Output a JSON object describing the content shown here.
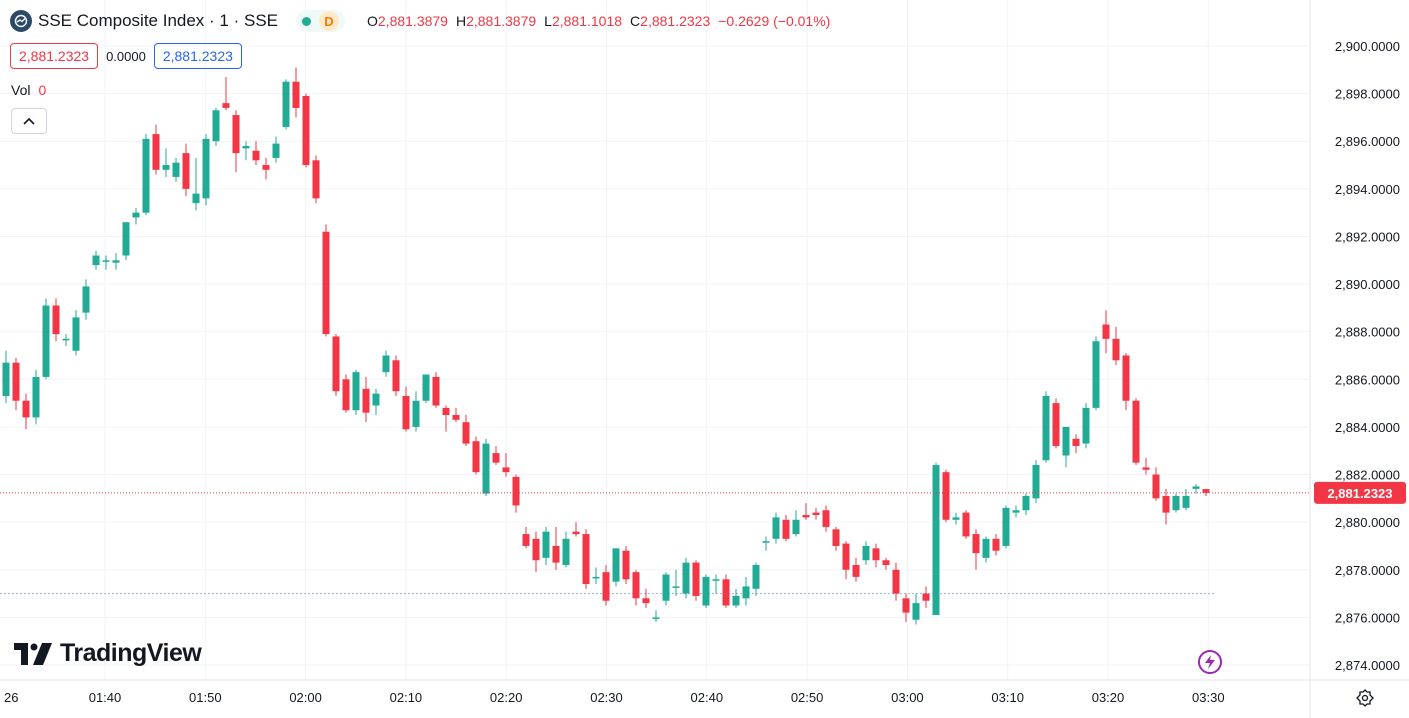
{
  "header": {
    "symbol_title": "SSE Composite Index · 1 · SSE",
    "interval_badge": "D",
    "ohlc": [
      {
        "label": "O",
        "value": "2,881.3879"
      },
      {
        "label": "H",
        "value": "2,881.3879"
      },
      {
        "label": "L",
        "value": "2,881.1018"
      },
      {
        "label": "C",
        "value": "2,881.2323"
      }
    ],
    "change": "−0.2629 (−0.01%)"
  },
  "price_boxes": {
    "sell": "2,881.2323",
    "spread": "0.0000",
    "buy": "2,881.2323"
  },
  "volume": {
    "label": "Vol",
    "value": "0"
  },
  "branding": {
    "name": "TradingView"
  },
  "colors": {
    "up": "#22ab94",
    "down": "#f23645",
    "grid": "#f0f3fa",
    "axis_text": "#131722",
    "last_price_line": "#f23645",
    "bolt": "#9c27b0"
  },
  "icons": [
    "symbol-logo-icon",
    "chevron-up-icon",
    "tradingview-logo-icon",
    "lightning-icon",
    "settings-icon"
  ],
  "chart_data": {
    "type": "candlestick",
    "ylim": [
      2873.0,
      2901.0
    ],
    "y_ticks": [
      "2,900.0000",
      "2,898.0000",
      "2,896.0000",
      "2,894.0000",
      "2,892.0000",
      "2,890.0000",
      "2,888.0000",
      "2,886.0000",
      "2,884.0000",
      "2,882.0000",
      "2,880.0000",
      "2,878.0000",
      "2,876.0000",
      "2,874.0000"
    ],
    "x_ticks": [
      "26",
      "01:40",
      "01:50",
      "02:00",
      "02:10",
      "02:20",
      "02:30",
      "02:40",
      "02:50",
      "03:00",
      "03:10",
      "03:20",
      "03:30"
    ],
    "last_price_label": "2,881.2323",
    "last_price": 2881.2323,
    "reference_line": 2877.0,
    "candles": [
      {
        "o": 2885.3,
        "h": 2887.2,
        "l": 2885.0,
        "c": 2886.7
      },
      {
        "o": 2886.7,
        "h": 2886.9,
        "l": 2884.7,
        "c": 2885.1
      },
      {
        "o": 2885.1,
        "h": 2885.4,
        "l": 2883.9,
        "c": 2884.4
      },
      {
        "o": 2884.4,
        "h": 2886.4,
        "l": 2884.1,
        "c": 2886.1
      },
      {
        "o": 2886.1,
        "h": 2889.4,
        "l": 2886.0,
        "c": 2889.1
      },
      {
        "o": 2889.1,
        "h": 2889.4,
        "l": 2887.6,
        "c": 2887.9
      },
      {
        "o": 2887.7,
        "h": 2887.9,
        "l": 2887.4,
        "c": 2887.7
      },
      {
        "o": 2887.2,
        "h": 2888.9,
        "l": 2887.0,
        "c": 2888.6
      },
      {
        "o": 2888.8,
        "h": 2890.2,
        "l": 2888.5,
        "c": 2889.9
      },
      {
        "o": 2890.8,
        "h": 2891.4,
        "l": 2890.6,
        "c": 2891.2
      },
      {
        "o": 2891.0,
        "h": 2891.2,
        "l": 2890.6,
        "c": 2891.0
      },
      {
        "o": 2890.9,
        "h": 2891.3,
        "l": 2890.6,
        "c": 2891.0
      },
      {
        "o": 2891.2,
        "h": 2892.5,
        "l": 2891.0,
        "c": 2892.6
      },
      {
        "o": 2892.8,
        "h": 2893.2,
        "l": 2892.5,
        "c": 2893.0
      },
      {
        "o": 2893.0,
        "h": 2896.3,
        "l": 2892.9,
        "c": 2896.1
      },
      {
        "o": 2896.3,
        "h": 2896.7,
        "l": 2894.6,
        "c": 2894.8
      },
      {
        "o": 2894.8,
        "h": 2895.7,
        "l": 2894.5,
        "c": 2895.0
      },
      {
        "o": 2894.5,
        "h": 2895.3,
        "l": 2894.3,
        "c": 2895.1
      },
      {
        "o": 2895.5,
        "h": 2895.9,
        "l": 2893.7,
        "c": 2894.0
      },
      {
        "o": 2893.4,
        "h": 2895.3,
        "l": 2893.1,
        "c": 2893.8
      },
      {
        "o": 2893.6,
        "h": 2896.3,
        "l": 2893.3,
        "c": 2896.1
      },
      {
        "o": 2896.0,
        "h": 2897.4,
        "l": 2895.8,
        "c": 2897.3
      },
      {
        "o": 2897.6,
        "h": 2898.7,
        "l": 2897.3,
        "c": 2897.4
      },
      {
        "o": 2897.1,
        "h": 2897.3,
        "l": 2894.7,
        "c": 2895.5
      },
      {
        "o": 2895.7,
        "h": 2896.0,
        "l": 2895.2,
        "c": 2895.8
      },
      {
        "o": 2895.6,
        "h": 2896.0,
        "l": 2895.0,
        "c": 2895.2
      },
      {
        "o": 2895.0,
        "h": 2895.3,
        "l": 2894.4,
        "c": 2894.8
      },
      {
        "o": 2895.3,
        "h": 2896.2,
        "l": 2895.1,
        "c": 2895.9
      },
      {
        "o": 2896.6,
        "h": 2898.6,
        "l": 2896.5,
        "c": 2898.5
      },
      {
        "o": 2898.5,
        "h": 2899.1,
        "l": 2897.0,
        "c": 2897.4
      },
      {
        "o": 2897.9,
        "h": 2898.0,
        "l": 2894.9,
        "c": 2895.0
      },
      {
        "o": 2895.2,
        "h": 2895.4,
        "l": 2893.4,
        "c": 2893.6
      },
      {
        "o": 2892.2,
        "h": 2892.5,
        "l": 2887.8,
        "c": 2887.9
      },
      {
        "o": 2887.8,
        "h": 2887.9,
        "l": 2885.3,
        "c": 2885.5
      },
      {
        "o": 2886.0,
        "h": 2886.2,
        "l": 2884.6,
        "c": 2884.7
      },
      {
        "o": 2884.7,
        "h": 2886.4,
        "l": 2884.5,
        "c": 2886.3
      },
      {
        "o": 2885.6,
        "h": 2886.1,
        "l": 2884.2,
        "c": 2884.6
      },
      {
        "o": 2884.9,
        "h": 2885.6,
        "l": 2884.5,
        "c": 2885.4
      },
      {
        "o": 2886.3,
        "h": 2887.2,
        "l": 2886.1,
        "c": 2887.0
      },
      {
        "o": 2886.8,
        "h": 2887.0,
        "l": 2885.3,
        "c": 2885.5
      },
      {
        "o": 2885.3,
        "h": 2885.7,
        "l": 2883.8,
        "c": 2883.9
      },
      {
        "o": 2884.0,
        "h": 2885.5,
        "l": 2883.8,
        "c": 2885.1
      },
      {
        "o": 2885.1,
        "h": 2886.2,
        "l": 2885.0,
        "c": 2886.2
      },
      {
        "o": 2886.1,
        "h": 2886.3,
        "l": 2884.8,
        "c": 2884.9
      },
      {
        "o": 2884.8,
        "h": 2884.9,
        "l": 2883.8,
        "c": 2884.5
      },
      {
        "o": 2884.5,
        "h": 2884.8,
        "l": 2884.2,
        "c": 2884.3
      },
      {
        "o": 2884.2,
        "h": 2884.5,
        "l": 2883.2,
        "c": 2883.3
      },
      {
        "o": 2883.4,
        "h": 2883.6,
        "l": 2882.0,
        "c": 2882.1
      },
      {
        "o": 2881.2,
        "h": 2883.5,
        "l": 2881.1,
        "c": 2883.3
      },
      {
        "o": 2882.9,
        "h": 2883.2,
        "l": 2882.4,
        "c": 2882.5
      },
      {
        "o": 2882.3,
        "h": 2882.9,
        "l": 2881.9,
        "c": 2882.1
      },
      {
        "o": 2881.9,
        "h": 2882.0,
        "l": 2880.4,
        "c": 2880.7
      },
      {
        "o": 2879.5,
        "h": 2879.8,
        "l": 2878.9,
        "c": 2879.0
      },
      {
        "o": 2879.3,
        "h": 2879.6,
        "l": 2877.9,
        "c": 2878.4
      },
      {
        "o": 2878.5,
        "h": 2879.8,
        "l": 2878.2,
        "c": 2879.6
      },
      {
        "o": 2879.0,
        "h": 2879.8,
        "l": 2878.0,
        "c": 2878.3
      },
      {
        "o": 2878.2,
        "h": 2879.6,
        "l": 2878.1,
        "c": 2879.3
      },
      {
        "o": 2879.6,
        "h": 2880.0,
        "l": 2879.4,
        "c": 2879.5
      },
      {
        "o": 2879.5,
        "h": 2879.7,
        "l": 2877.2,
        "c": 2877.4
      },
      {
        "o": 2877.7,
        "h": 2878.1,
        "l": 2877.4,
        "c": 2877.7
      },
      {
        "o": 2877.9,
        "h": 2878.2,
        "l": 2876.5,
        "c": 2876.7
      },
      {
        "o": 2877.5,
        "h": 2878.9,
        "l": 2877.3,
        "c": 2878.9
      },
      {
        "o": 2878.8,
        "h": 2879.0,
        "l": 2877.4,
        "c": 2877.6
      },
      {
        "o": 2877.9,
        "h": 2878.0,
        "l": 2876.5,
        "c": 2876.8
      },
      {
        "o": 2876.8,
        "h": 2877.2,
        "l": 2876.4,
        "c": 2876.6
      },
      {
        "o": 2876.0,
        "h": 2876.3,
        "l": 2875.8,
        "c": 2876.0
      },
      {
        "o": 2876.7,
        "h": 2877.9,
        "l": 2876.5,
        "c": 2877.8
      },
      {
        "o": 2877.3,
        "h": 2878.0,
        "l": 2876.9,
        "c": 2877.3
      },
      {
        "o": 2877.0,
        "h": 2878.5,
        "l": 2876.8,
        "c": 2878.3
      },
      {
        "o": 2878.3,
        "h": 2878.4,
        "l": 2876.7,
        "c": 2876.9
      },
      {
        "o": 2876.5,
        "h": 2877.8,
        "l": 2876.4,
        "c": 2877.7
      },
      {
        "o": 2877.6,
        "h": 2877.8,
        "l": 2877.0,
        "c": 2877.6
      },
      {
        "o": 2877.6,
        "h": 2877.8,
        "l": 2876.4,
        "c": 2876.5
      },
      {
        "o": 2876.5,
        "h": 2877.2,
        "l": 2876.4,
        "c": 2876.9
      },
      {
        "o": 2876.8,
        "h": 2877.7,
        "l": 2876.5,
        "c": 2877.3
      },
      {
        "o": 2877.2,
        "h": 2878.3,
        "l": 2876.9,
        "c": 2878.2
      },
      {
        "o": 2879.2,
        "h": 2879.4,
        "l": 2878.8,
        "c": 2879.2
      },
      {
        "o": 2879.3,
        "h": 2880.4,
        "l": 2879.1,
        "c": 2880.2
      },
      {
        "o": 2880.1,
        "h": 2880.3,
        "l": 2879.2,
        "c": 2879.3
      },
      {
        "o": 2879.5,
        "h": 2880.5,
        "l": 2879.4,
        "c": 2880.1
      },
      {
        "o": 2880.3,
        "h": 2880.8,
        "l": 2880.1,
        "c": 2880.2
      },
      {
        "o": 2880.4,
        "h": 2880.6,
        "l": 2880.1,
        "c": 2880.3
      },
      {
        "o": 2880.5,
        "h": 2880.7,
        "l": 2879.6,
        "c": 2879.8
      },
      {
        "o": 2879.7,
        "h": 2879.8,
        "l": 2878.8,
        "c": 2879.0
      },
      {
        "o": 2879.1,
        "h": 2879.2,
        "l": 2877.6,
        "c": 2878.0
      },
      {
        "o": 2878.2,
        "h": 2878.5,
        "l": 2877.5,
        "c": 2877.7
      },
      {
        "o": 2878.4,
        "h": 2879.2,
        "l": 2878.2,
        "c": 2879.0
      },
      {
        "o": 2878.9,
        "h": 2879.1,
        "l": 2878.1,
        "c": 2878.4
      },
      {
        "o": 2878.4,
        "h": 2878.5,
        "l": 2878.0,
        "c": 2878.2
      },
      {
        "o": 2878.0,
        "h": 2878.3,
        "l": 2876.7,
        "c": 2877.0
      },
      {
        "o": 2876.8,
        "h": 2877.0,
        "l": 2875.8,
        "c": 2876.2
      },
      {
        "o": 2875.9,
        "h": 2877.0,
        "l": 2875.7,
        "c": 2876.6
      },
      {
        "o": 2877.0,
        "h": 2877.3,
        "l": 2876.4,
        "c": 2876.7
      },
      {
        "o": 2876.1,
        "h": 2882.5,
        "l": 2876.1,
        "c": 2882.4
      },
      {
        "o": 2882.1,
        "h": 2882.2,
        "l": 2880.0,
        "c": 2880.1
      },
      {
        "o": 2880.1,
        "h": 2880.4,
        "l": 2879.9,
        "c": 2880.2
      },
      {
        "o": 2880.4,
        "h": 2880.5,
        "l": 2879.3,
        "c": 2879.4
      },
      {
        "o": 2879.5,
        "h": 2879.7,
        "l": 2878.0,
        "c": 2878.7
      },
      {
        "o": 2878.5,
        "h": 2879.4,
        "l": 2878.3,
        "c": 2879.3
      },
      {
        "o": 2879.3,
        "h": 2879.5,
        "l": 2878.6,
        "c": 2878.8
      },
      {
        "o": 2879.0,
        "h": 2880.7,
        "l": 2878.9,
        "c": 2880.6
      },
      {
        "o": 2880.4,
        "h": 2880.7,
        "l": 2880.2,
        "c": 2880.5
      },
      {
        "o": 2880.5,
        "h": 2881.2,
        "l": 2880.3,
        "c": 2881.1
      },
      {
        "o": 2881.0,
        "h": 2882.6,
        "l": 2880.8,
        "c": 2882.4
      },
      {
        "o": 2882.6,
        "h": 2885.5,
        "l": 2882.5,
        "c": 2885.3
      },
      {
        "o": 2885.0,
        "h": 2885.2,
        "l": 2883.1,
        "c": 2883.2
      },
      {
        "o": 2882.8,
        "h": 2884.0,
        "l": 2882.3,
        "c": 2884.0
      },
      {
        "o": 2883.5,
        "h": 2883.7,
        "l": 2882.9,
        "c": 2883.2
      },
      {
        "o": 2883.3,
        "h": 2885.0,
        "l": 2883.1,
        "c": 2884.8
      },
      {
        "o": 2884.8,
        "h": 2887.8,
        "l": 2884.7,
        "c": 2887.6
      },
      {
        "o": 2888.3,
        "h": 2888.9,
        "l": 2887.1,
        "c": 2887.7
      },
      {
        "o": 2887.7,
        "h": 2888.2,
        "l": 2886.6,
        "c": 2886.8
      },
      {
        "o": 2887.0,
        "h": 2887.1,
        "l": 2884.7,
        "c": 2885.1
      },
      {
        "o": 2885.1,
        "h": 2885.2,
        "l": 2882.4,
        "c": 2882.5
      },
      {
        "o": 2882.3,
        "h": 2882.7,
        "l": 2882.0,
        "c": 2882.2
      },
      {
        "o": 2882.0,
        "h": 2882.3,
        "l": 2880.9,
        "c": 2881.0
      },
      {
        "o": 2881.1,
        "h": 2881.4,
        "l": 2879.9,
        "c": 2880.4
      },
      {
        "o": 2880.5,
        "h": 2881.2,
        "l": 2880.4,
        "c": 2881.1
      },
      {
        "o": 2880.6,
        "h": 2881.4,
        "l": 2880.5,
        "c": 2881.1
      },
      {
        "o": 2881.4,
        "h": 2881.6,
        "l": 2881.2,
        "c": 2881.5
      },
      {
        "o": 2881.39,
        "h": 2881.39,
        "l": 2881.1,
        "c": 2881.23
      }
    ]
  }
}
